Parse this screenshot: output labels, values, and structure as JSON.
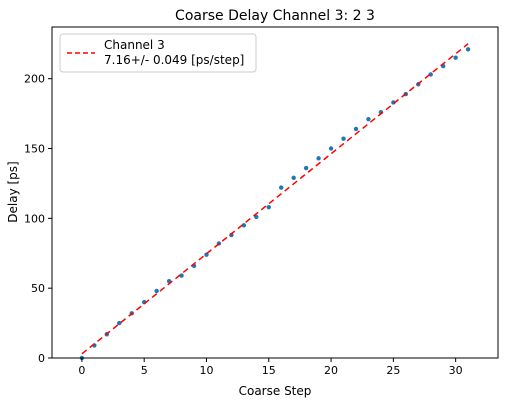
{
  "chart_data": {
    "type": "scatter",
    "title": "Coarse Delay Channel 3: 2 3",
    "xlabel": "Coarse Step",
    "ylabel": "Delay [ps]",
    "xlim": [
      -2.4,
      33.4
    ],
    "ylim": [
      0,
      237
    ],
    "xticks": [
      0,
      5,
      10,
      15,
      20,
      25,
      30
    ],
    "yticks": [
      0,
      50,
      100,
      150,
      200
    ],
    "grid": false,
    "legend_position": "top-left",
    "series": [
      {
        "kind": "points",
        "color": "#1f77b4",
        "x": [
          0,
          1,
          2,
          3,
          4,
          5,
          6,
          7,
          8,
          9,
          10,
          11,
          12,
          13,
          14,
          15,
          16,
          17,
          18,
          19,
          20,
          21,
          22,
          23,
          24,
          25,
          26,
          27,
          28,
          29,
          30,
          31
        ],
        "y": [
          0,
          9,
          17,
          25,
          32,
          40,
          48,
          55,
          59,
          66,
          74,
          82,
          88,
          95,
          101,
          108,
          122,
          129,
          136,
          143,
          150,
          157,
          164,
          171,
          176,
          183,
          189,
          196,
          203,
          209,
          215,
          221
        ]
      },
      {
        "kind": "fit-line",
        "name": "Channel 3\n7.16+/- 0.049 [ps/step]",
        "legend_lines": [
          "Channel 3",
          "7.16+/- 0.049 [ps/step]"
        ],
        "color": "#ff0000",
        "dash": "dashed",
        "x": [
          0,
          31
        ],
        "y": [
          3,
          225
        ]
      }
    ]
  }
}
